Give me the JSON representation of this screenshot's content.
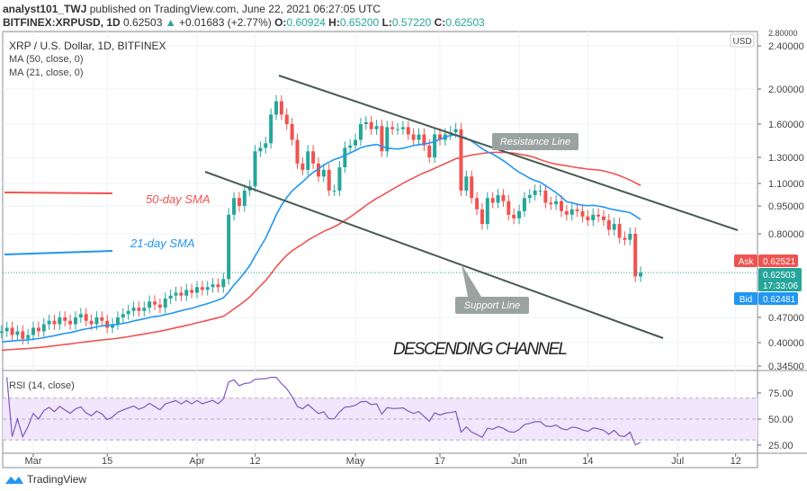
{
  "header": {
    "author": "analyst101_TWJ",
    "published": "published on TradingView.com, June 22, 2021 06:27:05 UTC",
    "symbol": "BITFINEX:XRPUSD, 1D",
    "last": "0.62503",
    "arrow": "▲",
    "change": "+0.01683 (+2.77%)",
    "o_label": "O:",
    "o": "0.60924",
    "h_label": "H:",
    "h": "0.65200",
    "l_label": "L:",
    "l": "0.57220",
    "c_label": "C:",
    "c": "0.62503"
  },
  "legend": {
    "title": "XRP / U.S. Dollar, 1D, BITFINEX",
    "ma50": "MA (50, close, 0)",
    "ma21": "MA (21, close, 0)",
    "rsi": "RSI (14, close)"
  },
  "price_axis": {
    "currency": "USD",
    "ticks": [
      "2.80000",
      "2.40000",
      "2.00000",
      "1.60000",
      "1.30000",
      "1.10000",
      "0.95000",
      "0.80000",
      "0.47000",
      "0.40000",
      "0.34500"
    ]
  },
  "rsi_axis": {
    "ticks": [
      "75.00",
      "50.00",
      "25.00"
    ]
  },
  "time_axis": {
    "ticks": [
      "Mar",
      "15",
      "Apr",
      "12",
      "May",
      "17",
      "Jun",
      "14",
      "Jul",
      "12"
    ]
  },
  "quotes": {
    "ask_label": "Ask",
    "ask": "0.62521",
    "last": "0.62503",
    "countdown": "17:33:06",
    "bid_label": "Bid",
    "bid": "0.62481"
  },
  "annotations": {
    "resistance": "Resistance Line",
    "support": "Support Line",
    "sma50": "50-day SMA",
    "sma21": "21-day SMA",
    "channel": "DESCENDING CHANNEL"
  },
  "colors": {
    "up": "#26a69a",
    "down": "#ef5350",
    "sma50": "#ef5350",
    "sma21": "#2196f3",
    "rsi": "#7e57c2",
    "channel": "#4a5a52"
  },
  "footer": {
    "brand": "TradingView"
  },
  "chart_data": {
    "type": "candlestick",
    "title": "XRP / U.S. Dollar, 1D, BITFINEX",
    "start_date": "2021-02-23",
    "scale": "log",
    "closes": [
      0.43,
      0.44,
      0.42,
      0.43,
      0.41,
      0.42,
      0.44,
      0.43,
      0.45,
      0.46,
      0.45,
      0.47,
      0.46,
      0.45,
      0.47,
      0.48,
      0.46,
      0.45,
      0.47,
      0.46,
      0.44,
      0.45,
      0.47,
      0.48,
      0.49,
      0.5,
      0.49,
      0.5,
      0.52,
      0.51,
      0.5,
      0.53,
      0.54,
      0.55,
      0.54,
      0.56,
      0.55,
      0.57,
      0.56,
      0.57,
      0.58,
      0.57,
      0.6,
      0.9,
      1.0,
      0.95,
      1.05,
      1.08,
      1.35,
      1.38,
      1.42,
      1.7,
      1.85,
      1.7,
      1.6,
      1.45,
      1.25,
      1.2,
      1.35,
      1.25,
      1.15,
      1.2,
      1.05,
      1.05,
      1.22,
      1.38,
      1.4,
      1.45,
      1.6,
      1.62,
      1.55,
      1.58,
      1.35,
      1.57,
      1.55,
      1.55,
      1.57,
      1.5,
      1.45,
      1.5,
      1.4,
      1.3,
      1.5,
      1.45,
      1.5,
      1.52,
      1.55,
      1.05,
      1.15,
      1.0,
      0.93,
      0.85,
      1.0,
      0.97,
      1.02,
      0.98,
      0.9,
      0.88,
      0.92,
      1.0,
      1.02,
      1.05,
      1.05,
      0.97,
      0.96,
      0.98,
      0.92,
      0.9,
      0.93,
      0.92,
      0.89,
      0.87,
      0.9,
      0.89,
      0.87,
      0.82,
      0.85,
      0.78,
      0.77,
      0.8,
      0.61,
      0.625
    ],
    "sma_periods": [
      50,
      21
    ],
    "rsi_period": 14,
    "rsi_band": [
      30,
      70
    ]
  }
}
